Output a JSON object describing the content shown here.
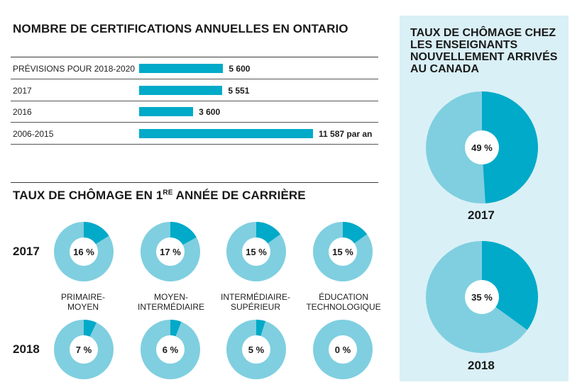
{
  "colors": {
    "primary": "#00aac8",
    "light": "#7fcfe0",
    "panel": "#d9f0f6"
  },
  "certifications": {
    "title": "NOMBRE DE CERTIFICATIONS ANNUELLES EN ONTARIO",
    "rows": [
      {
        "label": "PRÉVISIONS POUR 2018-2020",
        "value_label": "5 600"
      },
      {
        "label": "2017",
        "value_label": "5 551"
      },
      {
        "label": "2016",
        "value_label": "3 600"
      },
      {
        "label": "2006-2015",
        "value_label": "11 587 par an"
      }
    ]
  },
  "unemployment_first_year": {
    "title_prefix": "TAUX DE CHÔMAGE EN 1",
    "title_sup": "re",
    "title_suffix": " ANNÉE DE CARRIÈRE",
    "years": [
      "2017",
      "2018"
    ],
    "categories": [
      {
        "line1": "PRIMAIRE-",
        "line2": "MOYEN"
      },
      {
        "line1": "MOYEN-",
        "line2": "INTERMÉDIAIRE"
      },
      {
        "line1": "INTERMÉDIAIRE-",
        "line2": "SUPÉRIEUR"
      },
      {
        "line1": "ÉDUCATION",
        "line2": "TECHNOLOGIQUE"
      }
    ],
    "labels_2017": [
      "16 %",
      "17 %",
      "15 %",
      "15 %"
    ],
    "labels_2018": [
      "7 %",
      "6 %",
      "5 %",
      "0 %"
    ]
  },
  "newcomers": {
    "title": "TAUX DE CHÔMAGE CHEZ LES ENSEIGNANTS NOUVELLEMENT ARRIVÉS AU CANADA",
    "years": [
      "2017",
      "2018"
    ],
    "labels": [
      "49 %",
      "35 %"
    ]
  },
  "chart_data": [
    {
      "type": "bar",
      "title": "NOMBRE DE CERTIFICATIONS ANNUELLES EN ONTARIO",
      "categories": [
        "PRÉVISIONS POUR 2018-2020",
        "2017",
        "2016",
        "2006-2015"
      ],
      "values": [
        5600,
        5551,
        3600,
        11587
      ],
      "xlabel": "",
      "ylabel": "",
      "xlim": [
        0,
        11587
      ]
    },
    {
      "type": "pie",
      "title": "TAUX DE CHÔMAGE EN 1re ANNÉE DE CARRIÈRE",
      "categories": [
        "PRIMAIRE-MOYEN",
        "MOYEN-INTERMÉDIAIRE",
        "INTERMÉDIAIRE-SUPÉRIEUR",
        "ÉDUCATION TECHNOLOGIQUE"
      ],
      "series": [
        {
          "name": "2017",
          "values": [
            16,
            17,
            15,
            15
          ]
        },
        {
          "name": "2018",
          "values": [
            7,
            6,
            5,
            0
          ]
        }
      ]
    },
    {
      "type": "pie",
      "title": "TAUX DE CHÔMAGE CHEZ LES ENSEIGNANTS NOUVELLEMENT ARRIVÉS AU CANADA",
      "categories": [
        "2017",
        "2018"
      ],
      "values": [
        49,
        35
      ]
    }
  ]
}
